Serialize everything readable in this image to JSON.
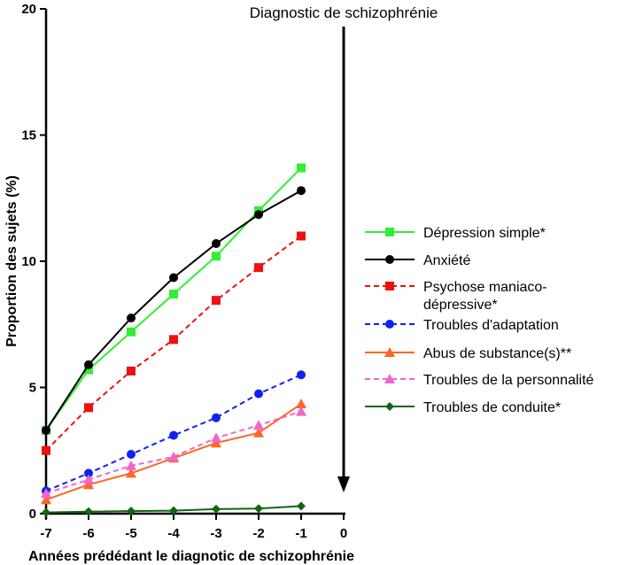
{
  "chart_data": {
    "type": "line",
    "xlabel": "Années prédédant le diagnotic de schizophrénie",
    "ylabel": "Proportion des sujets (%)",
    "x": [
      -7,
      -6,
      -5,
      -4,
      -3,
      -2,
      -1
    ],
    "xticks": [
      "-7",
      "-6",
      "-5",
      "-4",
      "-3",
      "-2",
      "-1",
      "0"
    ],
    "yticks": [
      "0",
      "5",
      "10",
      "15",
      "20"
    ],
    "xlim": [
      -7,
      0
    ],
    "ylim": [
      0,
      20
    ],
    "grid": false,
    "legend_position": "right",
    "annotation": {
      "text": "Diagnostic de schizophrénie",
      "x": 0
    },
    "series": [
      {
        "name": "Dépression simple*",
        "color": "#33ee33",
        "dash": "solid",
        "marker": "square",
        "values": [
          3.3,
          5.7,
          7.2,
          8.7,
          10.2,
          12.0,
          13.7
        ]
      },
      {
        "name": "Anxiété",
        "color": "#000000",
        "dash": "solid",
        "marker": "circle",
        "values": [
          3.3,
          5.9,
          7.75,
          9.35,
          10.7,
          11.85,
          12.8
        ]
      },
      {
        "name": "Psychose maniaco-dépressive*",
        "label_lines": [
          "Psychose maniaco-",
          "dépressive*"
        ],
        "color": "#ee1111",
        "dash": "dashed",
        "marker": "square",
        "values": [
          2.5,
          4.2,
          5.65,
          6.9,
          8.45,
          9.75,
          11.0
        ]
      },
      {
        "name": "Troubles d'adaptation",
        "color": "#1122ee",
        "dash": "dashed",
        "marker": "circle",
        "values": [
          0.9,
          1.6,
          2.35,
          3.1,
          3.8,
          4.75,
          5.5
        ]
      },
      {
        "name": "Abus de substance(s)**",
        "color": "#ff6622",
        "dash": "solid",
        "marker": "triangle",
        "values": [
          0.55,
          1.15,
          1.6,
          2.2,
          2.8,
          3.2,
          4.35
        ]
      },
      {
        "name": "Troubles de la personnalité",
        "color": "#ee66cc",
        "dash": "dashed",
        "marker": "triangle",
        "values": [
          0.8,
          1.35,
          1.9,
          2.25,
          3.0,
          3.5,
          4.05
        ]
      },
      {
        "name": "Troubles de conduite*",
        "color": "#116611",
        "dash": "solid",
        "marker": "diamond",
        "values": [
          0.05,
          0.08,
          0.1,
          0.12,
          0.18,
          0.2,
          0.3
        ]
      }
    ]
  }
}
